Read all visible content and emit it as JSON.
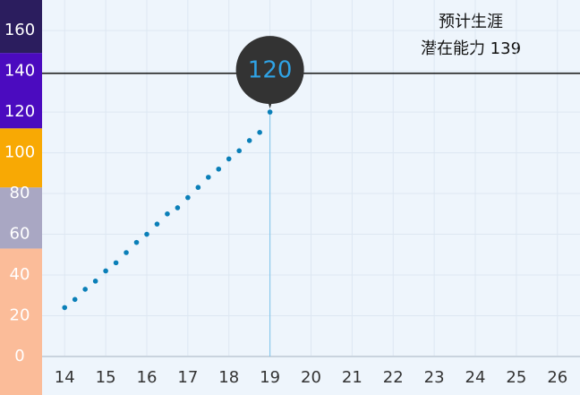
{
  "chart_data": {
    "type": "dotline",
    "title": "预计生涯",
    "annotation": "潜在能力 139",
    "x": [
      14,
      14.25,
      14.5,
      14.75,
      15,
      15.25,
      15.5,
      15.75,
      16,
      16.25,
      16.5,
      16.75,
      17,
      17.25,
      17.5,
      17.75,
      18,
      18.25,
      18.5,
      18.75,
      19
    ],
    "values": [
      24,
      28,
      33,
      37,
      42,
      46,
      51,
      56,
      60,
      65,
      70,
      73,
      78,
      83,
      88,
      92,
      97,
      101,
      106,
      110,
      120
    ],
    "color": "#0a7fb8",
    "highlight": {
      "x": 19,
      "value": 120
    },
    "potential_line": 139,
    "xlim": [
      13.45,
      26.55
    ],
    "xticks": [
      14,
      15,
      16,
      17,
      18,
      19,
      20,
      21,
      22,
      23,
      24,
      25,
      26
    ],
    "ylim": [
      0,
      175
    ],
    "yticks": [
      0,
      20,
      40,
      60,
      80,
      100,
      120,
      140,
      160
    ],
    "grid": true,
    "bands": [
      {
        "from": 0,
        "to": 53,
        "color": "#fbbc99"
      },
      {
        "from": 53,
        "to": 83,
        "color": "#a9a7c3"
      },
      {
        "from": 83,
        "to": 112,
        "color": "#f8a904"
      },
      {
        "from": 112,
        "to": 149,
        "color": "#4b0bbf"
      },
      {
        "from": 149,
        "to": 175,
        "color": "#2b1d5e"
      }
    ]
  }
}
